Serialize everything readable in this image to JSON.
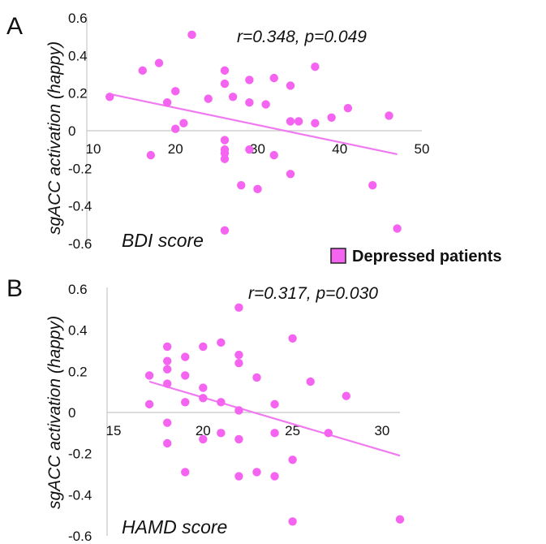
{
  "legend": {
    "label": "Depressed patients",
    "color": "#f564f0"
  },
  "colors": {
    "point": "#f564f0",
    "line": "#f07af0",
    "axis": "#c8c8c8"
  },
  "chart_data": [
    {
      "type": "scatter",
      "panel_label": "A",
      "title": "",
      "xlabel": "BDI score",
      "ylabel": "sgACC activation (happy)",
      "annotation": "r=0.348, p=0.049",
      "xlim": [
        10,
        50
      ],
      "ylim": [
        -0.6,
        0.6
      ],
      "xticks": [
        "10",
        "20",
        "30",
        "40",
        "50"
      ],
      "yticks": [
        "0.6",
        "0.4",
        "0.2",
        "0",
        "-0.2",
        "-0.4",
        "-0.6"
      ],
      "trendline": {
        "x": [
          12,
          47
        ],
        "y": [
          0.195,
          -0.125
        ]
      },
      "points": [
        [
          12,
          0.18
        ],
        [
          16,
          0.32
        ],
        [
          17,
          -0.13
        ],
        [
          18,
          0.36
        ],
        [
          19,
          0.15
        ],
        [
          20,
          0.21
        ],
        [
          20,
          0.01
        ],
        [
          21,
          0.04
        ],
        [
          22,
          0.51
        ],
        [
          24,
          0.17
        ],
        [
          26,
          0.32
        ],
        [
          26,
          0.25
        ],
        [
          26,
          -0.05
        ],
        [
          26,
          -0.1
        ],
        [
          26,
          -0.12
        ],
        [
          26,
          -0.15
        ],
        [
          26,
          -0.53
        ],
        [
          27,
          0.18
        ],
        [
          28,
          -0.29
        ],
        [
          29,
          0.27
        ],
        [
          29,
          0.15
        ],
        [
          29,
          -0.1
        ],
        [
          30,
          -0.31
        ],
        [
          31,
          0.14
        ],
        [
          32,
          0.28
        ],
        [
          32,
          -0.13
        ],
        [
          34,
          0.24
        ],
        [
          34,
          0.05
        ],
        [
          34,
          -0.23
        ],
        [
          35,
          0.05
        ],
        [
          37,
          0.34
        ],
        [
          37,
          0.04
        ],
        [
          39,
          0.07
        ],
        [
          41,
          0.12
        ],
        [
          44,
          -0.29
        ],
        [
          46,
          0.08
        ],
        [
          47,
          -0.52
        ]
      ]
    },
    {
      "type": "scatter",
      "panel_label": "B",
      "title": "",
      "xlabel": "HAMD score",
      "ylabel": "sgACC activation (happy)",
      "annotation": "r=0.317, p=0.030",
      "xlim": [
        15,
        31
      ],
      "ylim": [
        -0.6,
        0.6
      ],
      "xticks": [
        "15",
        "20",
        "25",
        "30"
      ],
      "yticks": [
        "0.6",
        "0.4",
        "0.2",
        "0",
        "-0.2",
        "-0.4",
        "-0.6"
      ],
      "trendline": {
        "x": [
          17,
          31
        ],
        "y": [
          0.15,
          -0.21
        ]
      },
      "points": [
        [
          17,
          0.18
        ],
        [
          17,
          0.04
        ],
        [
          18,
          0.32
        ],
        [
          18,
          0.25
        ],
        [
          18,
          0.21
        ],
        [
          18,
          0.14
        ],
        [
          18,
          -0.05
        ],
        [
          18,
          -0.15
        ],
        [
          19,
          0.27
        ],
        [
          19,
          0.18
        ],
        [
          19,
          0.05
        ],
        [
          19,
          -0.29
        ],
        [
          20,
          0.32
        ],
        [
          20,
          0.12
        ],
        [
          20,
          0.07
        ],
        [
          20,
          -0.13
        ],
        [
          21,
          0.34
        ],
        [
          21,
          0.05
        ],
        [
          21,
          -0.1
        ],
        [
          22,
          0.51
        ],
        [
          22,
          0.28
        ],
        [
          22,
          0.24
        ],
        [
          22,
          0.01
        ],
        [
          22,
          -0.13
        ],
        [
          22,
          -0.31
        ],
        [
          23,
          0.17
        ],
        [
          23,
          -0.29
        ],
        [
          24,
          0.04
        ],
        [
          24,
          -0.1
        ],
        [
          24,
          -0.31
        ],
        [
          25,
          0.36
        ],
        [
          25,
          -0.23
        ],
        [
          25,
          -0.53
        ],
        [
          26,
          0.15
        ],
        [
          27,
          -0.1
        ],
        [
          28,
          0.08
        ],
        [
          31,
          -0.52
        ]
      ]
    }
  ]
}
